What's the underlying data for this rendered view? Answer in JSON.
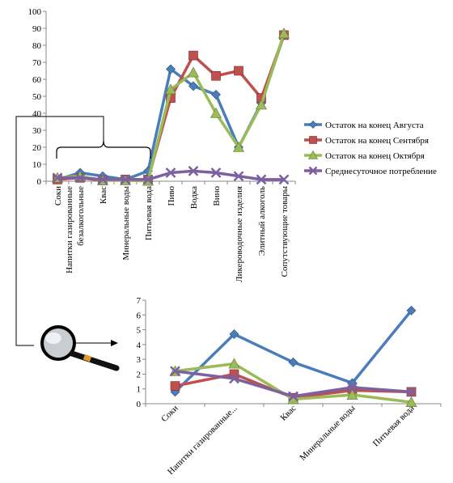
{
  "chart_data": [
    {
      "type": "line",
      "categories": [
        "Соки",
        "Напитки газированные безалкогольные",
        "Квас",
        "Минеральные воды",
        "Питьевая вода",
        "Пиво",
        "Водка",
        "Вино",
        "Ликероводочные изделия",
        "Элитный алкоголь",
        "Сопутствующие товары"
      ],
      "ylim": [
        0,
        100
      ],
      "yticks": [
        0,
        10,
        20,
        30,
        40,
        50,
        60,
        70,
        80,
        90,
        100
      ],
      "legend": "right",
      "grid": false,
      "series": [
        {
          "name": "Остаток на конец Августа",
          "color": "#4a7ebb",
          "marker": "diamond",
          "values": [
            1,
            5,
            3,
            1,
            6,
            66,
            56,
            51,
            20,
            46,
            86
          ]
        },
        {
          "name": "Остаток на конец Сентября",
          "color": "#c0504d",
          "marker": "square",
          "values": [
            1,
            2,
            0.5,
            1,
            1,
            49,
            74,
            62,
            65,
            49,
            86
          ]
        },
        {
          "name": "Остаток на конец Октября",
          "color": "#9bbb59",
          "marker": "triangle",
          "values": [
            2,
            3,
            0.5,
            0.5,
            0.2,
            54,
            64,
            40,
            20,
            45,
            87
          ]
        },
        {
          "name": "Среднесуточное потребление",
          "color": "#7d60a0",
          "marker": "x",
          "values": [
            2,
            2,
            1,
            1,
            1,
            5,
            6,
            5,
            3,
            1,
            1
          ]
        }
      ]
    },
    {
      "type": "line",
      "categories": [
        "Соки",
        "Напитки газированные...",
        "Квас",
        "Минеральные воды",
        "Питьевая вода"
      ],
      "ylim": [
        0,
        7
      ],
      "yticks": [
        0,
        1,
        2,
        3,
        4,
        5,
        6,
        7
      ],
      "grid": false,
      "series": [
        {
          "color": "#4a7ebb",
          "marker": "diamond",
          "values": [
            0.8,
            4.7,
            2.8,
            1.4,
            6.3
          ]
        },
        {
          "color": "#c0504d",
          "marker": "square",
          "values": [
            1.2,
            2.0,
            0.4,
            0.9,
            0.8
          ]
        },
        {
          "color": "#9bbb59",
          "marker": "triangle",
          "values": [
            2.2,
            2.7,
            0.3,
            0.6,
            0.1
          ]
        },
        {
          "color": "#7d60a0",
          "marker": "x",
          "values": [
            2.2,
            1.7,
            0.5,
            1.1,
            0.8
          ]
        }
      ]
    }
  ],
  "icons": {
    "magnifier": "magnifier-icon",
    "bracket": "curly-brace-icon",
    "arrow": "callout-arrow-icon"
  }
}
